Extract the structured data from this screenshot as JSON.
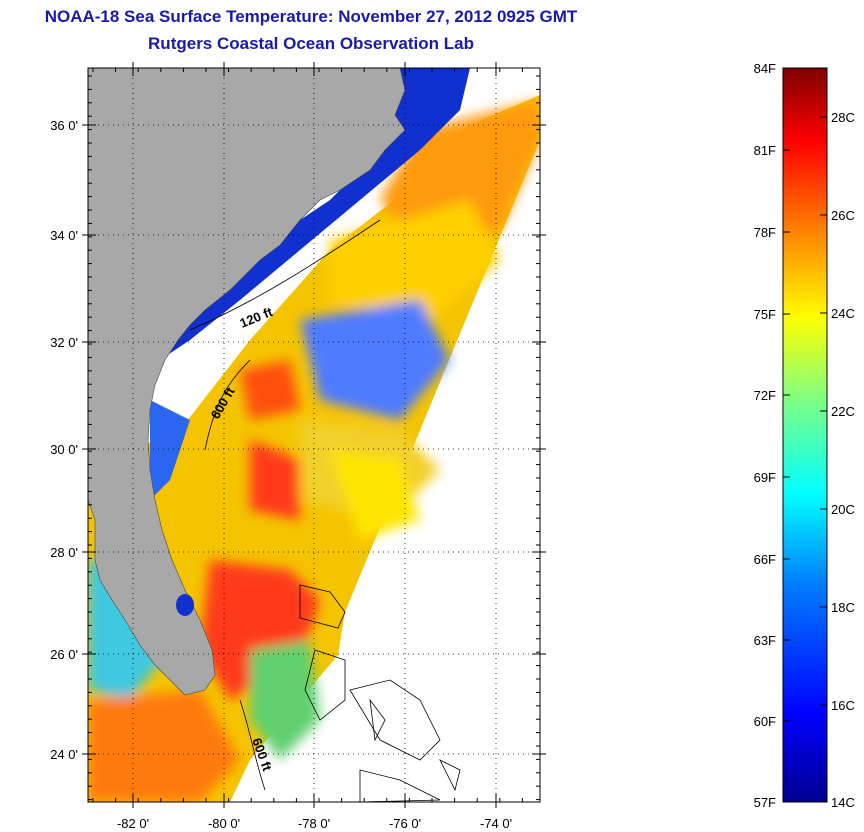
{
  "title": "NOAA-18 Sea Surface Temperature:  November 27, 2012 0925 GMT",
  "subtitle": "Rutgers Coastal Ocean Observation Lab",
  "map": {
    "lat_labels": [
      "36 0'",
      "34 0'",
      "32 0'",
      "30 0'",
      "28 0'",
      "26 0'",
      "24 0'"
    ],
    "lon_labels": [
      "-82 0'",
      "-80 0'",
      "-78 0'",
      "-76 0'",
      "-74 0'"
    ],
    "contour_labels": [
      "120 ft",
      "600 ft",
      "600 ft"
    ],
    "land_color": "#a8a8a8",
    "no_data_color": "#ffffff"
  },
  "colorbar": {
    "fahrenheit_labels": [
      "84F",
      "81F",
      "78F",
      "75F",
      "72F",
      "69F",
      "66F",
      "63F",
      "60F",
      "57F"
    ],
    "celsius_labels": [
      "28C",
      "26C",
      "24C",
      "22C",
      "20C",
      "18C",
      "16C",
      "14C"
    ],
    "colors": [
      "#00008f",
      "#0000ff",
      "#0080ff",
      "#00ffff",
      "#80ff80",
      "#ffff00",
      "#ff8000",
      "#ff0000",
      "#800000"
    ]
  }
}
